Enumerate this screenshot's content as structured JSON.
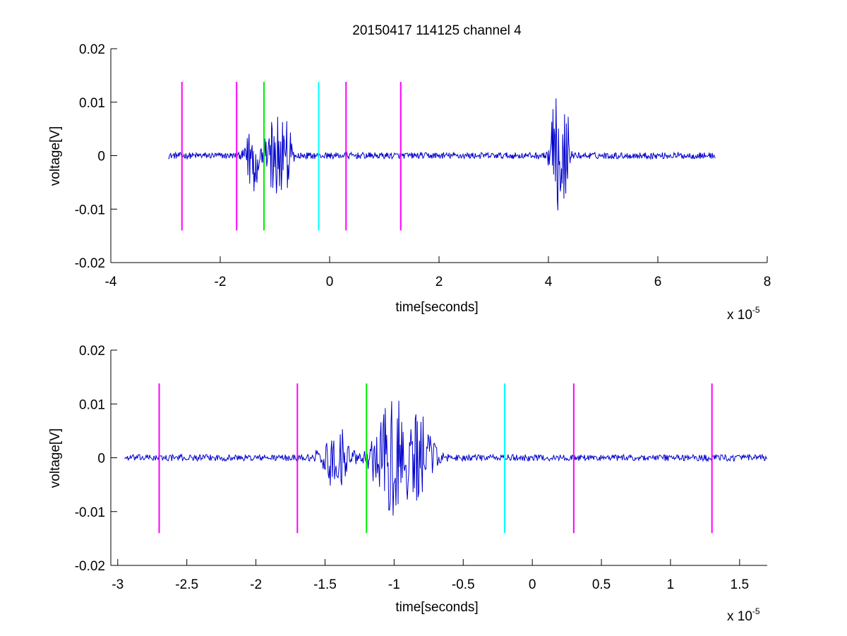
{
  "title": "20150417 114125 channel 4",
  "chart_data": [
    {
      "type": "line",
      "xlabel": "time[seconds]",
      "ylabel": "voltage[V]",
      "x_multiplier": "x 10",
      "x_exponent": "-5",
      "xlim": [
        -4,
        8
      ],
      "ylim": [
        -0.02,
        0.02
      ],
      "xticks": [
        -4,
        -2,
        0,
        2,
        4,
        6,
        8
      ],
      "xtick_labels": [
        "-4",
        "-2",
        "0",
        "2",
        "4",
        "6",
        "8"
      ],
      "yticks": [
        -0.02,
        -0.01,
        0,
        0.01,
        0.02
      ],
      "ytick_labels": [
        "-0.02",
        "-0.01",
        "0",
        "0.01",
        "0.02"
      ],
      "grid": false,
      "signal": {
        "color": "#0000cc",
        "x_range": [
          -2.95,
          7.05
        ],
        "baseline_noise": 0.0006,
        "bursts": [
          {
            "t": -1.41,
            "amp": 0.008,
            "width": 0.08
          },
          {
            "t": -1.02,
            "amp": 0.009,
            "width": 0.12
          },
          {
            "t": -0.82,
            "amp": 0.007,
            "width": 0.1
          },
          {
            "t": 4.15,
            "amp": 0.011,
            "width": 0.09
          },
          {
            "t": 4.32,
            "amp": 0.011,
            "width": 0.05
          }
        ]
      },
      "markers": [
        {
          "x": -2.7,
          "color": "#ff00ff"
        },
        {
          "x": -1.7,
          "color": "#ff00ff"
        },
        {
          "x": -1.2,
          "color": "#00ee00"
        },
        {
          "x": -0.2,
          "color": "#00ffff"
        },
        {
          "x": 0.3,
          "color": "#ff00ff"
        },
        {
          "x": 1.3,
          "color": "#ff00ff"
        }
      ],
      "marker_range": [
        -0.014,
        0.0138
      ]
    },
    {
      "type": "line",
      "xlabel": "time[seconds]",
      "ylabel": "voltage[V]",
      "x_multiplier": "x 10",
      "x_exponent": "-5",
      "xlim": [
        -3.05,
        1.7
      ],
      "ylim": [
        -0.02,
        0.02
      ],
      "xticks": [
        -3,
        -2.5,
        -2,
        -1.5,
        -1,
        -0.5,
        0,
        0.5,
        1,
        1.5
      ],
      "xtick_labels": [
        "-3",
        "-2.5",
        "-2",
        "-1.5",
        "-1",
        "-0.5",
        "0",
        "0.5",
        "1",
        "1.5"
      ],
      "yticks": [
        -0.02,
        -0.01,
        0,
        0.01,
        0.02
      ],
      "ytick_labels": [
        "-0.02",
        "-0.01",
        "0",
        "0.01",
        "0.02"
      ],
      "grid": false,
      "signal": {
        "color": "#0000cc",
        "x_range": [
          -2.95,
          1.7
        ],
        "baseline_noise": 0.0006,
        "bursts": [
          {
            "t": -1.41,
            "amp": 0.006,
            "width": 0.08
          },
          {
            "t": -1.02,
            "amp": 0.011,
            "width": 0.1
          },
          {
            "t": -0.82,
            "amp": 0.008,
            "width": 0.08
          }
        ]
      },
      "markers": [
        {
          "x": -2.7,
          "color": "#ff00ff"
        },
        {
          "x": -1.7,
          "color": "#ff00ff"
        },
        {
          "x": -1.2,
          "color": "#00ee00"
        },
        {
          "x": -0.2,
          "color": "#00ffff"
        },
        {
          "x": 0.3,
          "color": "#ff00ff"
        },
        {
          "x": 1.3,
          "color": "#ff00ff"
        }
      ],
      "marker_range": [
        -0.014,
        0.0138
      ]
    }
  ]
}
